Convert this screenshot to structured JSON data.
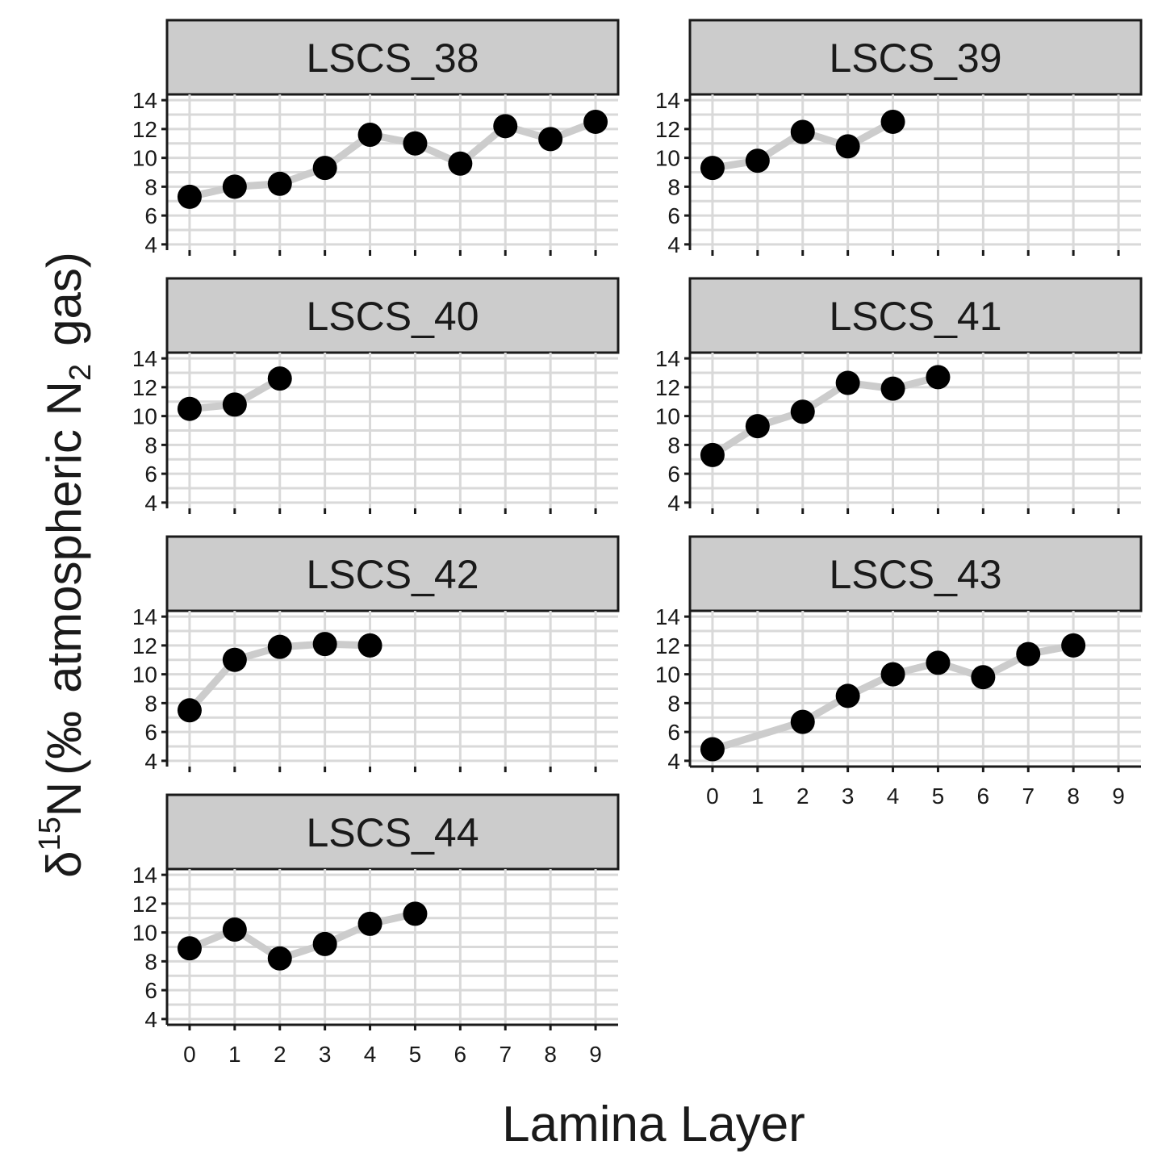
{
  "chart_data": {
    "type": "line",
    "xlabel": "Lamina Layer",
    "ylabel": {
      "symbol": "δ",
      "superscript": "15",
      "element": "N",
      "open": "(",
      "unit": "‰",
      "middle": "atmospheric N",
      "subscript": "2",
      "end": "gas)"
    },
    "x_ticks": [
      0,
      1,
      2,
      3,
      4,
      5,
      6,
      7,
      8,
      9
    ],
    "y_ticks": [
      4,
      6,
      8,
      10,
      12,
      14
    ],
    "xlim": [
      -0.5,
      9.5
    ],
    "ylim": [
      3.6,
      14.4
    ],
    "grid": true,
    "colors": {
      "line": "#cccccc",
      "point": "#000000",
      "strip": "#cccccc",
      "grid": "#d9d9d9"
    },
    "panels": [
      {
        "name": "LSCS_38",
        "x": [
          0,
          1,
          2,
          3,
          4,
          5,
          6,
          7,
          8,
          9
        ],
        "y": [
          7.3,
          8.0,
          8.2,
          9.3,
          11.6,
          11.0,
          9.6,
          12.2,
          11.3,
          12.5
        ]
      },
      {
        "name": "LSCS_39",
        "x": [
          0,
          1,
          2,
          3,
          4
        ],
        "y": [
          9.3,
          9.8,
          11.8,
          10.8,
          12.5
        ]
      },
      {
        "name": "LSCS_40",
        "x": [
          0,
          1,
          2
        ],
        "y": [
          10.5,
          10.8,
          12.6
        ]
      },
      {
        "name": "LSCS_41",
        "x": [
          0,
          1,
          2,
          3,
          4,
          5
        ],
        "y": [
          7.3,
          9.3,
          10.3,
          12.3,
          11.9,
          12.7
        ]
      },
      {
        "name": "LSCS_42",
        "x": [
          0,
          1,
          2,
          3,
          4
        ],
        "y": [
          7.5,
          11.0,
          11.9,
          12.1,
          12.0
        ]
      },
      {
        "name": "LSCS_43",
        "x": [
          0,
          2,
          3,
          4,
          5,
          6,
          7,
          8
        ],
        "y": [
          4.8,
          6.7,
          8.5,
          10.0,
          10.8,
          9.8,
          11.4,
          12.0
        ]
      },
      {
        "name": "LSCS_44",
        "x": [
          0,
          1,
          2,
          3,
          4,
          5
        ],
        "y": [
          8.9,
          10.2,
          8.2,
          9.2,
          10.6,
          11.3
        ]
      }
    ]
  }
}
